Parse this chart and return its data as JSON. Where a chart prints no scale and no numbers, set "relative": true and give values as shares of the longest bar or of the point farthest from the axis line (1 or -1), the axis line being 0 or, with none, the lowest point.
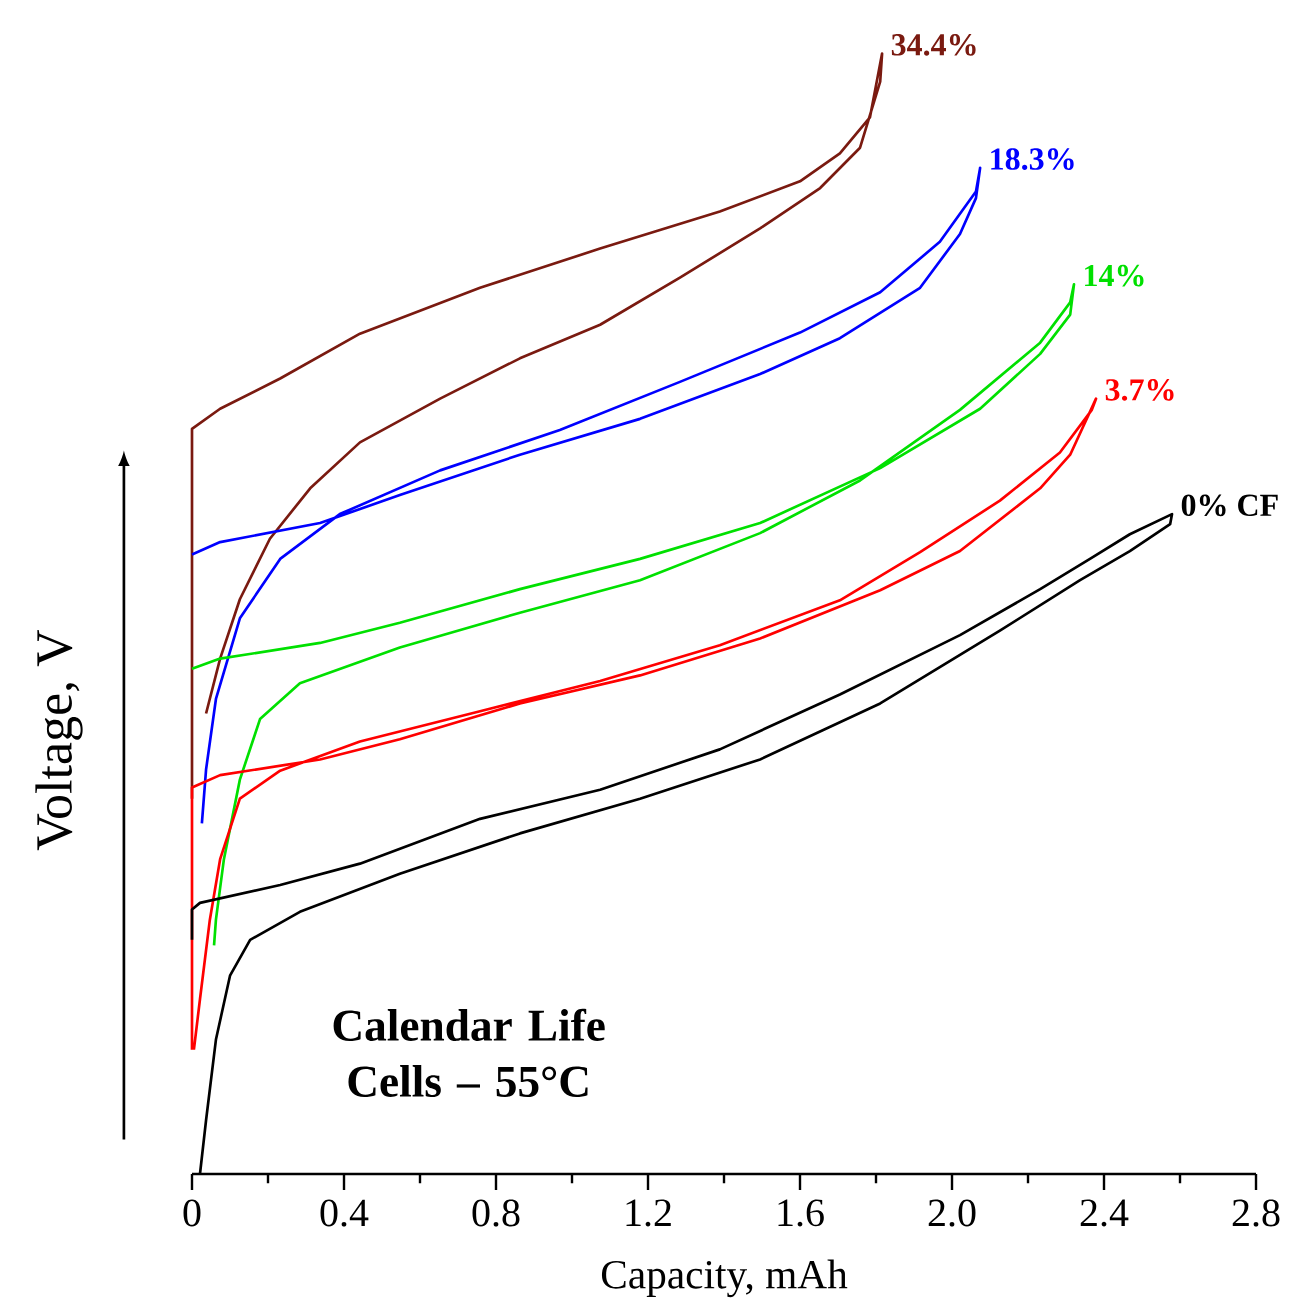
{
  "chart_data": {
    "type": "line",
    "relative": true,
    "xlabel": "Capacity, mAh",
    "ylabel": "Voltage, V",
    "xlim": [
      0,
      2.8
    ],
    "xticks": [
      0,
      {
        "value": 0.2,
        "label": null
      },
      0.4,
      {
        "value": 0.6,
        "label": null
      },
      0.8,
      {
        "value": 1.0,
        "label": null
      },
      1.2,
      {
        "value": 1.4,
        "label": null
      },
      1.6,
      {
        "value": 1.8,
        "label": null
      },
      {
        "value": 2,
        "label": "2.0"
      },
      {
        "value": 2.2,
        "label": null
      },
      2.4,
      {
        "value": 2.6,
        "label": null
      },
      2.8
    ],
    "annotations": [
      "Calendar Life Cells – 55°C"
    ],
    "series": [
      {
        "name": "34.4%",
        "color": "#7a1a10",
        "x": [
          0,
          0,
          0.074,
          0.232,
          0.442,
          0.758,
          1.074,
          1.389,
          1.6,
          1.705,
          1.784,
          1.816,
          1.811,
          1.758,
          1.653,
          1.495,
          1.284,
          1.074,
          0.863,
          0.653,
          0.442,
          0.311,
          0.205,
          0.126,
          0.074,
          0.037
        ],
        "values": [
          0.335,
          0.665,
          0.683,
          0.71,
          0.75,
          0.791,
          0.826,
          0.859,
          0.886,
          0.911,
          0.943,
          1,
          0.975,
          0.916,
          0.88,
          0.844,
          0.8,
          0.758,
          0.728,
          0.692,
          0.653,
          0.612,
          0.567,
          0.513,
          0.46,
          0.411
        ]
      },
      {
        "name": "18.3%",
        "color": "#0000ff",
        "x": [
          0,
          0.074,
          0.337,
          0.547,
          0.863,
          1.179,
          1.495,
          1.705,
          1.916,
          2.021,
          2.063,
          2.074,
          2.063,
          1.968,
          1.811,
          1.6,
          1.284,
          0.968,
          0.653,
          0.389,
          0.232,
          0.126,
          0.063,
          0.037,
          0.026
        ],
        "values": [
          0.553,
          0.564,
          0.581,
          0.606,
          0.642,
          0.674,
          0.714,
          0.746,
          0.791,
          0.839,
          0.871,
          0.898,
          0.877,
          0.832,
          0.787,
          0.751,
          0.707,
          0.664,
          0.628,
          0.589,
          0.549,
          0.496,
          0.424,
          0.361,
          0.313
        ]
      },
      {
        "name": "14%",
        "color": "#00e000",
        "x": [
          0,
          0.074,
          0.337,
          0.547,
          0.863,
          1.179,
          1.495,
          1.811,
          2.074,
          2.232,
          2.311,
          2.321,
          2.311,
          2.232,
          2.021,
          1.758,
          1.495,
          1.179,
          0.863,
          0.547,
          0.284,
          0.179,
          0.126,
          0.084,
          0.063,
          0.058
        ],
        "values": [
          0.451,
          0.46,
          0.474,
          0.492,
          0.522,
          0.549,
          0.581,
          0.63,
          0.683,
          0.732,
          0.767,
          0.794,
          0.778,
          0.742,
          0.682,
          0.619,
          0.572,
          0.53,
          0.501,
          0.47,
          0.438,
          0.406,
          0.352,
          0.281,
          0.227,
          0.204
        ]
      },
      {
        "name": "3.7%",
        "color": "#ff0000",
        "x": [
          0,
          0,
          0.074,
          0.337,
          0.547,
          0.863,
          1.179,
          1.495,
          1.811,
          2.021,
          2.232,
          2.311,
          2.379,
          2.368,
          2.284,
          2.126,
          1.916,
          1.705,
          1.389,
          1.074,
          0.758,
          0.442,
          0.232,
          0.126,
          0.074,
          0.047,
          0.021,
          0.005
        ],
        "values": [
          0.111,
          0.345,
          0.356,
          0.37,
          0.388,
          0.42,
          0.445,
          0.478,
          0.521,
          0.556,
          0.612,
          0.642,
          0.692,
          0.682,
          0.644,
          0.601,
          0.555,
          0.512,
          0.472,
          0.44,
          0.413,
          0.386,
          0.36,
          0.335,
          0.281,
          0.227,
          0.156,
          0.111
        ]
      },
      {
        "name": "0% CF",
        "color": "#000000",
        "x": [
          0,
          0,
          0.021,
          0.232,
          0.442,
          0.758,
          1.074,
          1.389,
          1.705,
          2.021,
          2.232,
          2.363,
          2.468,
          2.579,
          2.574,
          2.468,
          2.337,
          2.126,
          1.811,
          1.495,
          1.179,
          0.863,
          0.547,
          0.284,
          0.153,
          0.1,
          0.063,
          0.037,
          0.021
        ],
        "values": [
          0.209,
          0.236,
          0.242,
          0.258,
          0.277,
          0.317,
          0.343,
          0.379,
          0.428,
          0.481,
          0.522,
          0.549,
          0.571,
          0.589,
          0.58,
          0.556,
          0.53,
          0.485,
          0.42,
          0.37,
          0.335,
          0.304,
          0.268,
          0.234,
          0.209,
          0.177,
          0.12,
          0.048,
          0
        ]
      }
    ]
  }
}
